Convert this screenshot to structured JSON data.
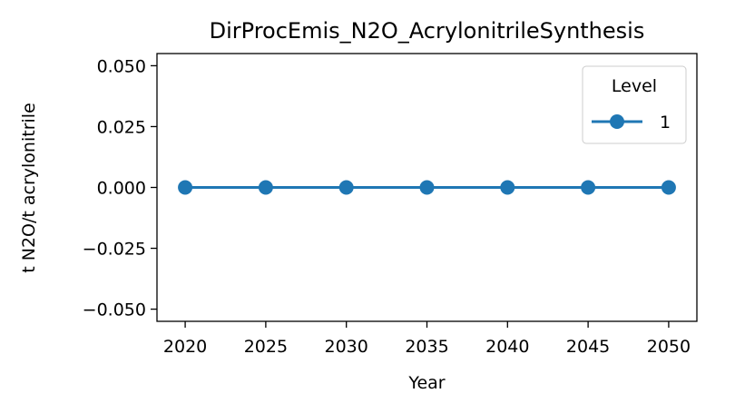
{
  "chart_data": {
    "type": "line",
    "title": "DirProcEmis_N2O_AcrylonitrileSynthesis",
    "xlabel": "Year",
    "ylabel": "t N2O/t acrylonitrile",
    "x": [
      2020,
      2025,
      2030,
      2035,
      2040,
      2045,
      2050
    ],
    "xlim": [
      2018.25,
      2051.75
    ],
    "ylim": [
      -0.055,
      0.055
    ],
    "xticks": [
      2020,
      2025,
      2030,
      2035,
      2040,
      2045,
      2050
    ],
    "xtick_labels": [
      "2020",
      "2025",
      "2030",
      "2035",
      "2040",
      "2045",
      "2050"
    ],
    "yticks": [
      0.05,
      0.025,
      0.0,
      -0.025,
      -0.05
    ],
    "ytick_labels": [
      "0.050",
      "0.025",
      "0.000",
      "−0.025",
      "−0.050"
    ],
    "grid": false,
    "legend": {
      "title": "Level",
      "placement": "top-right"
    },
    "series": [
      {
        "name": "1",
        "color": "#1f77b4",
        "marker": "circle",
        "values": [
          0,
          0,
          0,
          0,
          0,
          0,
          0
        ]
      }
    ]
  }
}
